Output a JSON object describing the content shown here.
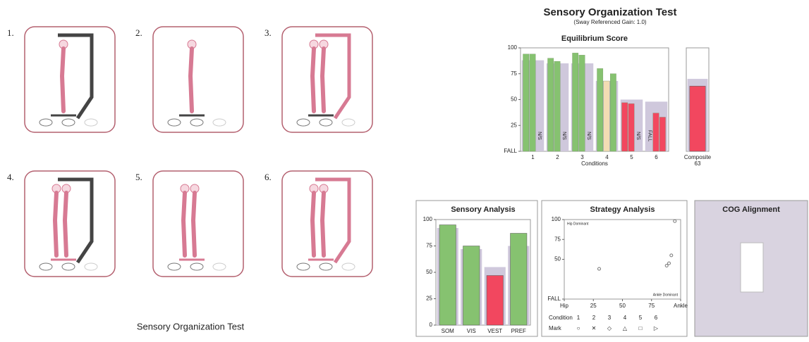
{
  "header": {
    "title": "Sensory Organization Test",
    "subtitle": "(Sway Referenced Gain: 1.0)"
  },
  "panels": {
    "labels": [
      "1.",
      "2.",
      "3.",
      "4.",
      "5.",
      "6."
    ]
  },
  "caption": "Sensory Organization Test",
  "cog": {
    "title": "COG Alignment"
  },
  "chart_data": [
    {
      "type": "bar",
      "title": "Equilibrium Score",
      "x_label": "Conditions",
      "categories": [
        "1",
        "2",
        "3",
        "4",
        "5",
        "6"
      ],
      "ylim": [
        0,
        100
      ],
      "yticks": [
        {
          "value": 0,
          "label": "FALL"
        },
        25,
        50,
        75,
        100
      ],
      "norms": {
        "color": "#cfc8dc",
        "values": [
          88,
          85,
          85,
          68,
          50,
          48
        ]
      },
      "series": [
        {
          "colors": [
            "#86c270",
            "#86c270",
            "#86c270",
            "#86c270",
            "#f2475f",
            "#f2475f"
          ],
          "values": [
            94,
            90,
            95,
            80,
            47,
            null
          ],
          "value_labels": [
            null,
            null,
            null,
            null,
            null,
            "FALL"
          ]
        },
        {
          "colors": [
            "#86c270",
            "#86c270",
            "#86c270",
            "#f3dcb4",
            "#f2475f",
            "#f2475f"
          ],
          "values": [
            94,
            87,
            93,
            68,
            46,
            37
          ],
          "value_labels": [
            null,
            null,
            null,
            null,
            null,
            null
          ]
        },
        {
          "colors": [
            "#86c270",
            "#86c270",
            "#86c270",
            "#86c270",
            "#f2475f",
            "#f2475f"
          ],
          "values": [
            null,
            null,
            null,
            75,
            null,
            33
          ],
          "value_labels": [
            "N/S",
            "N/S",
            "N/S",
            null,
            "N/S",
            null
          ]
        }
      ]
    },
    {
      "type": "bar",
      "categories": [
        "Composite"
      ],
      "values": [
        63
      ],
      "color": "#f2475f",
      "norms": {
        "color": "#cfc8dc",
        "values": [
          70
        ]
      },
      "ylim": [
        0,
        100
      ]
    },
    {
      "type": "bar",
      "title": "Sensory Analysis",
      "categories": [
        "SOM",
        "VIS",
        "VEST",
        "PREF"
      ],
      "values": [
        95,
        75,
        47,
        87
      ],
      "colors": [
        "#86c270",
        "#86c270",
        "#f2475f",
        "#86c270"
      ],
      "norms": {
        "color": "#cfc8dc",
        "values": [
          92,
          72,
          55,
          75
        ]
      },
      "ylim": [
        0,
        100
      ],
      "yticks": [
        0,
        25,
        50,
        75,
        100
      ]
    },
    {
      "type": "scatter",
      "title": "Strategy Analysis",
      "color": "#777",
      "xlim": [
        0,
        100
      ],
      "xticks": [
        {
          "value": 0,
          "label": "Hip"
        },
        25,
        50,
        75,
        {
          "value": 100,
          "label": "Ankle"
        }
      ],
      "ylim": [
        0,
        100
      ],
      "yticks": [
        {
          "value": 0,
          "label": "FALL"
        },
        50,
        75,
        100
      ],
      "annotations": [
        "Hip Dominant",
        "Ankle Dominant"
      ],
      "x": [
        30,
        88,
        90,
        92,
        95
      ],
      "values": [
        38,
        42,
        45,
        55,
        98
      ],
      "legend": {
        "title": "Condition",
        "items": [
          "1",
          "2",
          "3",
          "4",
          "5",
          "6"
        ],
        "mark_label": "Mark",
        "marks": [
          "○",
          "✕",
          "◇",
          "△",
          "□",
          "▷"
        ]
      }
    }
  ]
}
